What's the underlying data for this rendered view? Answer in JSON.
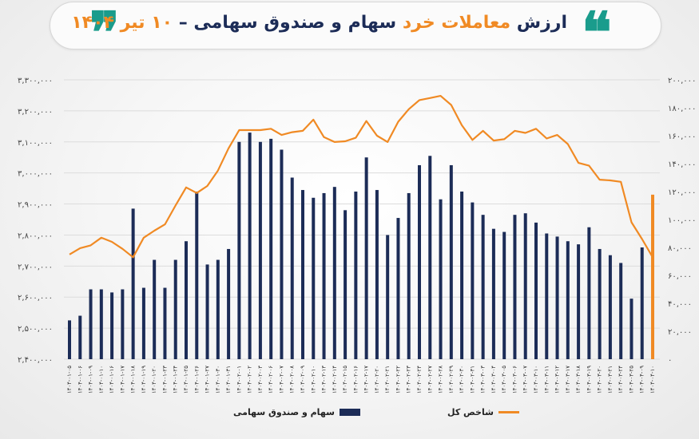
{
  "header": {
    "title_part1": "ارزش",
    "title_part2": "معاملات خرد",
    "title_part3": "سهام و صندوق سهامی –",
    "title_part4": "۱۰ تیر ۱۴۰۴",
    "open_quote": "❝",
    "close_quote": "❞"
  },
  "colors": {
    "bars": "#1c2c57",
    "line": "#f08a24",
    "accent": "#1a9c8c",
    "title": "#1c2c57"
  },
  "chart_data": {
    "type": "bar+line",
    "title": "ارزش معاملات خرد سهام و صندوق سهامی – ۱۰ تیر ۱۴۰۴",
    "legend": [
      {
        "name": "سهام و صندوق سهامی",
        "kind": "bar"
      },
      {
        "name": "شاخص کل",
        "kind": "line"
      }
    ],
    "left_axis": {
      "min": 2400000,
      "max": 3300000,
      "ticks": [
        "۲,۴۰۰,۰۰۰",
        "۲,۵۰۰,۰۰۰",
        "۲,۶۰۰,۰۰۰",
        "۲,۷۰۰,۰۰۰",
        "۲,۸۰۰,۰۰۰",
        "۲,۹۰۰,۰۰۰",
        "۳,۰۰۰,۰۰۰",
        "۳,۱۰۰,۰۰۰",
        "۳,۲۰۰,۰۰۰",
        "۳,۳۰۰,۰۰۰"
      ]
    },
    "right_axis": {
      "min": 0,
      "max": 200000,
      "ticks": [
        "۰",
        "۲۰,۰۰۰",
        "۴۰,۰۰۰",
        "۶۰,۰۰۰",
        "۸۰,۰۰۰",
        "۱۰۰,۰۰۰",
        "۱۲۰,۰۰۰",
        "۱۴۰,۰۰۰",
        "۱۶۰,۰۰۰",
        "۱۸۰,۰۰۰",
        "۲۰۰,۰۰۰"
      ]
    },
    "categories": [
      "۱۴۰۴-۰۱-۰۵",
      "۱۴۰۴-۰۱-۰۶",
      "۱۴۰۴-۰۱-۰۹",
      "۱۴۰۴-۰۱-۱۰",
      "۱۴۰۴-۰۱-۱۶",
      "۱۴۰۴-۰۱-۱۷",
      "۱۴۰۴-۰۱-۱۸",
      "۱۴۰۴-۰۱-۱۹",
      "۱۴۰۴-۰۱-۲۰",
      "۱۴۰۴-۰۱-۲۳",
      "۱۴۰۴-۰۱-۲۴",
      "۱۴۰۴-۰۱-۲۵",
      "۱۴۰۴-۰۱-۲۶",
      "۱۴۰۴-۰۱-۲۷",
      "۱۴۰۴-۰۱-۳۰",
      "۱۴۰۴-۰۱-۳۱",
      "۱۴۰۴-۰۲-۰۱",
      "۱۴۰۴-۰۲-۰۲",
      "۱۴۰۴-۰۲-۰۳",
      "۱۴۰۴-۰۲-۰۶",
      "۱۴۰۴-۰۲-۰۷",
      "۱۴۰۴-۰۲-۰۸",
      "۱۴۰۴-۰۲-۰۹",
      "۱۴۰۴-۰۲-۱۰",
      "۱۴۰۴-۰۲-۱۳",
      "۱۴۰۴-۰۲-۱۴",
      "۱۴۰۴-۰۲-۱۵",
      "۱۴۰۴-۰۲-۱۶",
      "۱۴۰۴-۰۲-۱۷",
      "۱۴۰۴-۰۲-۲۰",
      "۱۴۰۴-۰۲-۲۱",
      "۱۴۰۴-۰۲-۲۲",
      "۱۴۰۴-۰۲-۲۳",
      "۱۴۰۴-۰۲-۲۴",
      "۱۴۰۴-۰۲-۲۷",
      "۱۴۰۴-۰۲-۲۸",
      "۱۴۰۴-۰۲-۲۹",
      "۱۴۰۴-۰۲-۳۰",
      "۱۴۰۴-۰۲-۳۱",
      "۱۴۰۴-۰۳-۰۳",
      "۱۴۰۴-۰۳-۰۴",
      "۱۴۰۴-۰۳-۰۵",
      "۱۴۰۴-۰۳-۰۶",
      "۱۴۰۴-۰۳-۰۷",
      "۱۴۰۴-۰۳-۱۰",
      "۱۴۰۴-۰۳-۱۱",
      "۱۴۰۴-۰۳-۱۲",
      "۱۴۰۴-۰۳-۱۷",
      "۱۴۰۴-۰۳-۱۸",
      "۱۴۰۴-۰۳-۱۹",
      "۱۴۰۴-۰۳-۲۰",
      "۱۴۰۴-۰۳-۲۱",
      "۱۴۰۴-۰۳-۲۴",
      "۱۴۰۴-۰۳-۲۵",
      "۱۴۰۴-۰۴-۰۹",
      "۱۴۰۴-۰۴-۱۰"
    ],
    "series": [
      {
        "name": "سهام و صندوق سهامی",
        "axis": "left",
        "values": [
          2525000,
          2540000,
          2625000,
          2625000,
          2615000,
          2625000,
          2885000,
          2630000,
          2720000,
          2630000,
          2720000,
          2780000,
          2940000,
          2705000,
          2720000,
          2755000,
          3100000,
          3130000,
          3100000,
          3110000,
          3075000,
          2985000,
          2945000,
          2920000,
          2935000,
          2955000,
          2880000,
          2940000,
          3050000,
          2945000,
          2800000,
          2855000,
          2935000,
          3025000,
          3055000,
          2915000,
          3025000,
          2940000,
          2905000,
          2865000,
          2820000,
          2810000,
          2865000,
          2870000,
          2840000,
          2805000,
          2795000,
          2780000,
          2770000,
          2825000,
          2755000,
          2735000,
          2710000,
          2595000,
          2760000,
          2930000
        ]
      },
      {
        "name": "شاخص کل",
        "axis": "right",
        "values": [
          75000,
          79500,
          81500,
          87000,
          84000,
          79000,
          73000,
          87000,
          92000,
          96500,
          110000,
          123000,
          119000,
          124000,
          135000,
          151000,
          164000,
          164000,
          164000,
          165000,
          160500,
          162500,
          163500,
          171500,
          159000,
          155500,
          156000,
          158500,
          170500,
          160000,
          155500,
          170000,
          179000,
          185500,
          187000,
          188500,
          182000,
          167500,
          157000,
          163500,
          156500,
          157500,
          163500,
          162000,
          165000,
          158000,
          160500,
          154000,
          140500,
          138500,
          128500,
          128000,
          127000,
          98000,
          86000,
          73000
        ]
      }
    ],
    "grid": "horizontal"
  }
}
